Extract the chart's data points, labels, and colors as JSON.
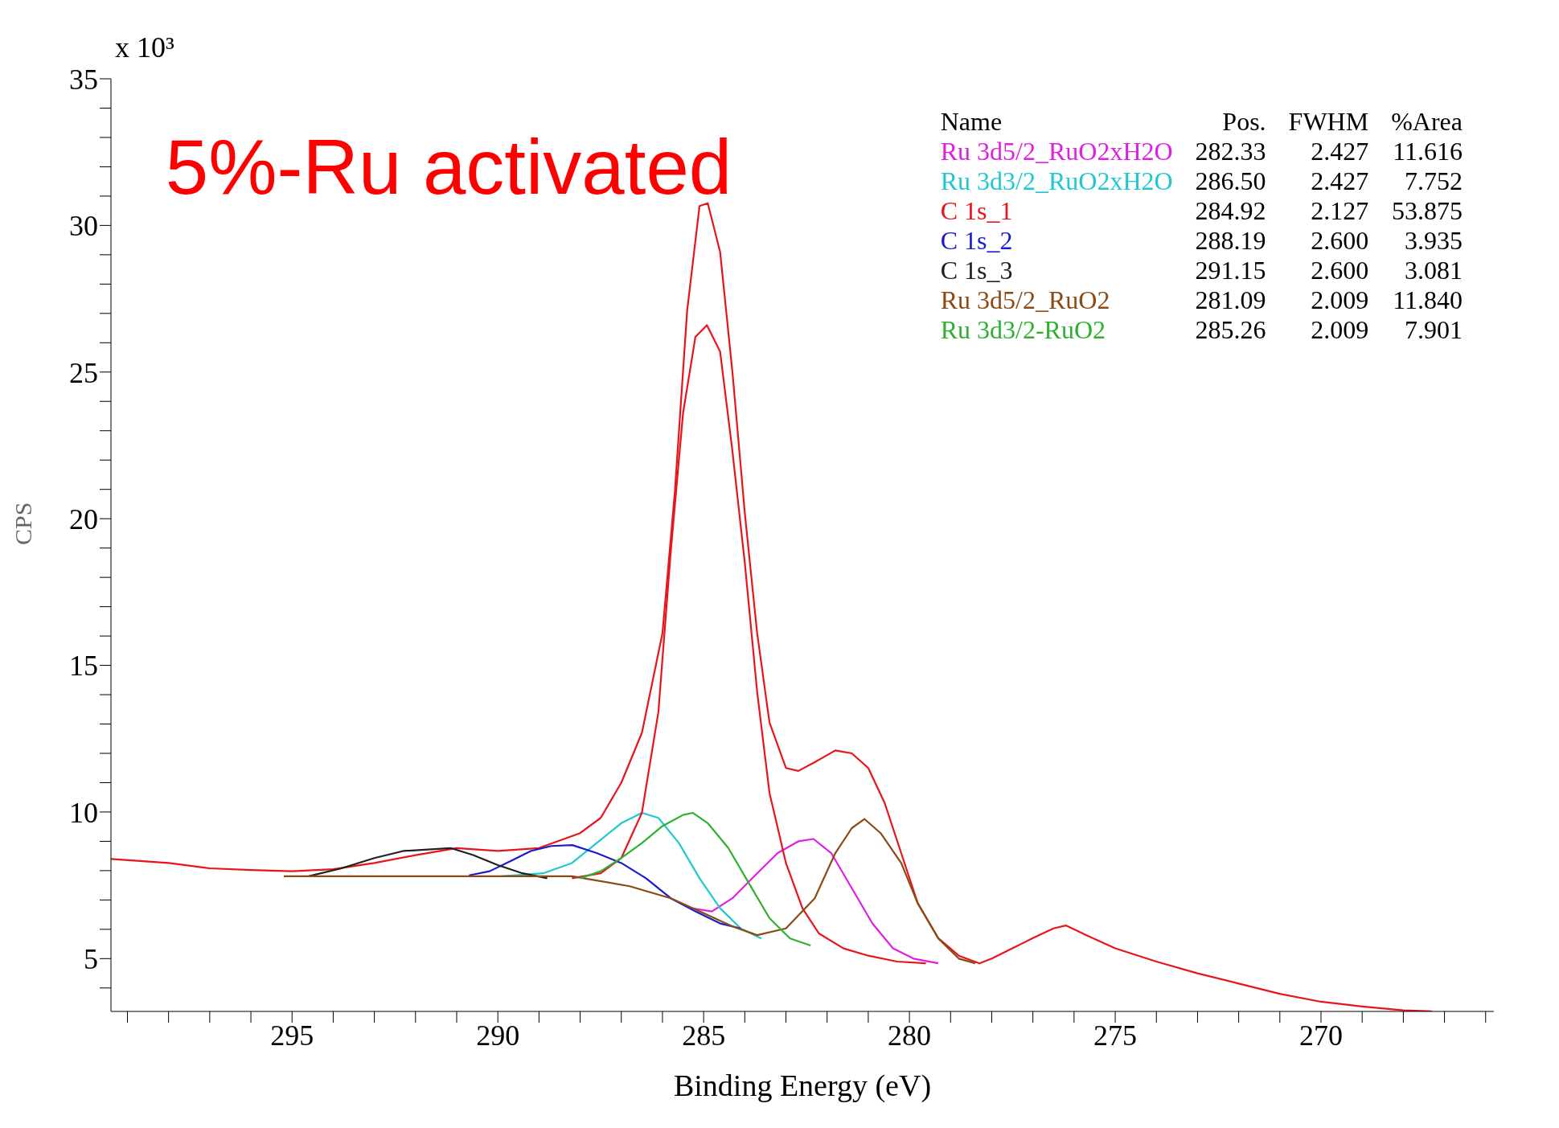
{
  "chart_data": {
    "type": "line",
    "title": "5%-Ru activated",
    "xlabel": "Binding Energy (eV)",
    "ylabel": "CPS",
    "annotations": [
      "x 10³",
      "Name",
      "Pos.",
      "FWHM",
      "%Area",
      "282.33",
      "2.427",
      "11.616",
      "286.50",
      "2.427",
      "7.752",
      "284.92",
      "2.127",
      "53.875",
      "288.19",
      "2.600",
      "3.935",
      "291.15",
      "2.600",
      "3.081",
      "281.09",
      "2.009",
      "11.840",
      "285.26",
      "2.009",
      "7.901"
    ],
    "xlim": [
      299.4,
      265.8
    ],
    "ylim": [
      3.2,
      35
    ],
    "xticks": [
      {
        "value": 299,
        "label": null
      },
      {
        "value": 298,
        "label": null
      },
      {
        "value": 297,
        "label": null
      },
      {
        "value": 296,
        "label": null
      },
      295,
      {
        "value": 294,
        "label": null
      },
      {
        "value": 293,
        "label": null
      },
      {
        "value": 292,
        "label": null
      },
      {
        "value": 291,
        "label": null
      },
      290,
      {
        "value": 289,
        "label": null
      },
      {
        "value": 288,
        "label": null
      },
      {
        "value": 287,
        "label": null
      },
      {
        "value": 286,
        "label": null
      },
      285,
      {
        "value": 284,
        "label": null
      },
      {
        "value": 283,
        "label": null
      },
      {
        "value": 282,
        "label": null
      },
      {
        "value": 281,
        "label": null
      },
      280,
      {
        "value": 279,
        "label": null
      },
      {
        "value": 278,
        "label": null
      },
      {
        "value": 277,
        "label": null
      },
      {
        "value": 276,
        "label": null
      },
      275,
      {
        "value": 274,
        "label": null
      },
      {
        "value": 273,
        "label": null
      },
      {
        "value": 272,
        "label": null
      },
      {
        "value": 271,
        "label": null
      },
      270,
      {
        "value": 269,
        "label": null
      },
      {
        "value": 268,
        "label": null
      },
      {
        "value": 267,
        "label": null
      },
      {
        "value": 266,
        "label": null
      }
    ],
    "yticks": [
      {
        "value": 4,
        "label": null
      },
      5,
      {
        "value": 6,
        "label": null
      },
      {
        "value": 7,
        "label": null
      },
      {
        "value": 8,
        "label": null
      },
      {
        "value": 9,
        "label": null
      },
      10,
      {
        "value": 11,
        "label": null
      },
      {
        "value": 12,
        "label": null
      },
      {
        "value": 13,
        "label": null
      },
      {
        "value": 14,
        "label": null
      },
      15,
      {
        "value": 16,
        "label": null
      },
      {
        "value": 17,
        "label": null
      },
      {
        "value": 18,
        "label": null
      },
      {
        "value": 19,
        "label": null
      },
      20,
      {
        "value": 21,
        "label": null
      },
      {
        "value": 22,
        "label": null
      },
      {
        "value": 23,
        "label": null
      },
      {
        "value": 24,
        "label": null
      },
      25,
      {
        "value": 26,
        "label": null
      },
      {
        "value": 27,
        "label": null
      },
      {
        "value": 28,
        "label": null
      },
      {
        "value": 29,
        "label": null
      },
      30,
      {
        "value": 31,
        "label": null
      },
      {
        "value": 32,
        "label": null
      },
      {
        "value": 33,
        "label": null
      },
      {
        "value": 34,
        "label": null
      },
      35
    ],
    "grid": false,
    "legend": "top right",
    "marker": "none",
    "line_style": "solid",
    "series": [
      {
        "color": "#e8141c",
        "x": [
          299.4,
          298,
          297,
          296,
          295,
          294,
          293,
          292,
          291,
          290,
          289,
          288,
          287.5,
          287,
          286.5,
          286,
          285.7,
          285.4,
          285.1,
          284.9,
          284.6,
          284.3,
          284,
          283.7,
          283.4,
          283,
          282.7,
          282.3,
          281.8,
          281.4,
          281,
          280.6,
          280.2,
          279.8,
          279.3,
          278.8,
          278.3,
          278,
          277.5,
          277,
          276.5,
          276.2,
          275.7,
          275,
          274,
          273,
          272,
          271,
          270,
          269,
          268,
          267.3
        ],
        "values": [
          8.4,
          8.26,
          8.08,
          8.02,
          7.98,
          8.05,
          8.26,
          8.53,
          8.77,
          8.67,
          8.77,
          9.28,
          9.8,
          11.0,
          12.7,
          16.1,
          20.9,
          27.1,
          30.66,
          30.76,
          29.1,
          25.0,
          20.2,
          16.1,
          13.05,
          11.5,
          11.4,
          11.7,
          12.1,
          12.0,
          11.5,
          10.3,
          8.6,
          6.9,
          5.7,
          5.1,
          4.84,
          5.0,
          5.35,
          5.7,
          6.03,
          6.13,
          5.8,
          5.35,
          4.9,
          4.5,
          4.15,
          3.8,
          3.53,
          3.37,
          3.24,
          3.2
        ]
      },
      {
        "name": "Ru 3d5/2_RuO2xH2O",
        "color": "#e020e0",
        "x": [
          285.3,
          284.8,
          284.3,
          283.7,
          283.2,
          282.7,
          282.33,
          281.9,
          281.4,
          280.9,
          280.4,
          279.9,
          279.3
        ],
        "values": [
          6.72,
          6.61,
          7.06,
          7.91,
          8.6,
          9.0,
          9.08,
          8.6,
          7.4,
          6.2,
          5.35,
          5.0,
          4.84
        ]
      },
      {
        "name": "Ru 3d3/2_RuO2xH2O",
        "color": "#20c8d0",
        "x": [
          289.9,
          288.9,
          288.2,
          287.6,
          287.0,
          286.5,
          286.1,
          285.6,
          285.1,
          284.6,
          284.1,
          283.6
        ],
        "values": [
          7.81,
          7.91,
          8.26,
          8.94,
          9.62,
          9.97,
          9.8,
          8.94,
          7.74,
          6.72,
          6.03,
          5.69
        ]
      },
      {
        "name": "C 1s_1",
        "color": "#e8141c",
        "x": [
          288.2,
          287.5,
          287.0,
          286.5,
          286.1,
          285.8,
          285.5,
          285.2,
          284.92,
          284.6,
          284.3,
          284.0,
          283.7,
          283.4,
          283.0,
          282.6,
          282.2,
          281.6,
          281.0,
          280.3,
          279.6
        ],
        "values": [
          7.74,
          7.91,
          8.43,
          9.97,
          13.4,
          18.86,
          23.6,
          26.2,
          26.6,
          25.7,
          22.3,
          18.5,
          14.1,
          10.65,
          8.26,
          6.72,
          5.86,
          5.35,
          5.1,
          4.9,
          4.84
        ]
      },
      {
        "name": "C 1s_2",
        "color": "#1a1ad0",
        "x": [
          290.7,
          290.2,
          289.7,
          289.2,
          288.7,
          288.19,
          287.6,
          287.0,
          286.4,
          285.8,
          285.2,
          284.6,
          284.1
        ],
        "values": [
          7.84,
          7.98,
          8.32,
          8.67,
          8.84,
          8.87,
          8.6,
          8.26,
          7.74,
          7.06,
          6.61,
          6.2,
          6.03
        ]
      },
      {
        "name": "C 1s_3",
        "color": "#202020",
        "x": [
          294.6,
          293.8,
          293.0,
          292.3,
          291.15,
          290.6,
          290.0,
          289.4,
          288.8
        ],
        "values": [
          7.81,
          8.08,
          8.43,
          8.67,
          8.77,
          8.53,
          8.19,
          7.91,
          7.74
        ]
      },
      {
        "name": "Ru 3d5/2_RuO2",
        "color": "#8b4a14",
        "x": [
          295.2,
          288.2,
          286.8,
          285.8,
          285.0,
          284.3,
          283.7,
          283.0,
          282.3,
          281.8,
          281.4,
          281.09,
          280.7,
          280.2,
          279.8,
          279.3,
          278.8,
          278.4
        ],
        "values": [
          7.81,
          7.81,
          7.47,
          7.06,
          6.55,
          6.1,
          5.8,
          6.03,
          7.06,
          8.6,
          9.45,
          9.76,
          9.28,
          8.26,
          6.89,
          5.69,
          5.0,
          4.84
        ]
      },
      {
        "name": "Ru 3d3/2-RuO2",
        "color": "#30b030",
        "x": [
          288.0,
          287.5,
          287.0,
          286.5,
          286.0,
          285.5,
          285.26,
          284.9,
          284.4,
          283.9,
          283.4,
          282.9,
          282.4
        ],
        "values": [
          7.74,
          7.98,
          8.43,
          8.94,
          9.52,
          9.9,
          9.97,
          9.62,
          8.77,
          7.57,
          6.38,
          5.69,
          5.45
        ]
      }
    ]
  }
}
